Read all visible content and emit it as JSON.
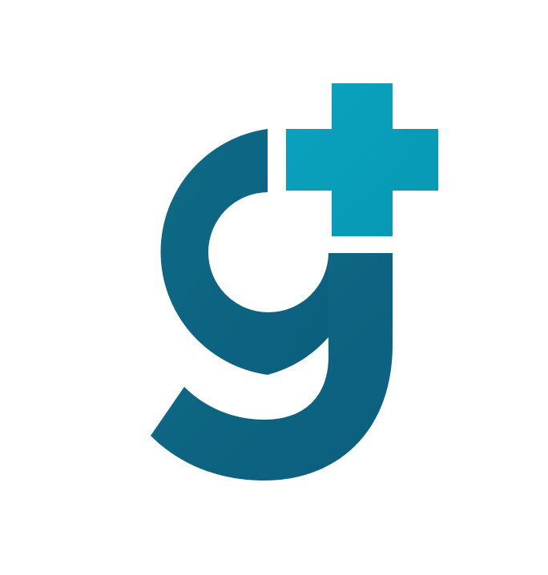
{
  "logo": {
    "name": "g-plus-logo",
    "colors": {
      "letter": "#0b5f7e",
      "letter_highlight": "#0e6a86",
      "plus": "#0797b3",
      "plus_highlight": "#0aa3be",
      "background": "#ffffff"
    },
    "icons": [
      "letter-g-icon",
      "plus-icon"
    ]
  }
}
